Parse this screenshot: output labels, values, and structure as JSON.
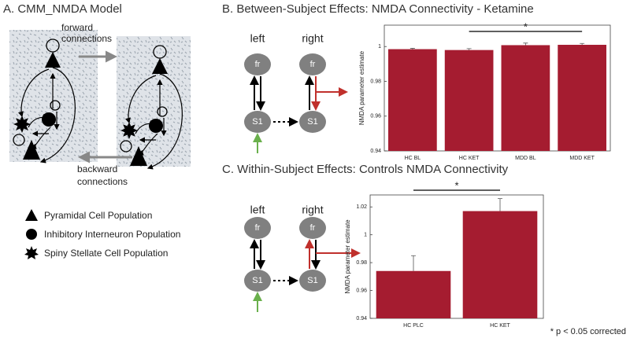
{
  "panel_a": {
    "title": "A. CMM_NMDA Model",
    "forward": [
      "forward",
      "connections"
    ],
    "backward": [
      "backward",
      "connections"
    ],
    "legend": [
      "Pyramidal Cell Population",
      "Inhibitory Interneuron Population",
      "Spiny Stellate Cell Population"
    ]
  },
  "panel_b": {
    "title": "B. Between-Subject Effects: NMDA Connectivity - Ketamine",
    "diagram": {
      "left": "left",
      "right": "right",
      "top": "fr",
      "bottom": "S1"
    }
  },
  "panel_c": {
    "title": "C. Within-Subject Effects: Controls NMDA Connectivity",
    "diagram": {
      "left": "left",
      "right": "right",
      "top": "fr",
      "bottom": "S1"
    }
  },
  "footnote": "* p < 0.05 corrected",
  "chart_data": [
    {
      "type": "bar",
      "ylabel": "NMDA parameter estimate",
      "categories": [
        "HC BL",
        "HC KET",
        "MDD BL",
        "MDD KET"
      ],
      "values": [
        0.9985,
        0.998,
        1.0008,
        1.001
      ],
      "errors": [
        0.0005,
        0.0008,
        0.0012,
        0.0008
      ],
      "color": "#a51c30",
      "ylim": [
        0.94,
        1.0123
      ],
      "yticks": [
        0.94,
        0.96,
        0.98,
        1
      ],
      "significance": {
        "label": "*",
        "between": [
          "HC KET",
          "MDD KET"
        ]
      }
    },
    {
      "type": "bar",
      "ylabel": "NMDA parameter estimate",
      "categories": [
        "HC PLC",
        "HC KET"
      ],
      "values": [
        0.974,
        1.017
      ],
      "errors": [
        0.011,
        0.009
      ],
      "color": "#a51c30",
      "ylim": [
        0.94,
        1.0286
      ],
      "yticks": [
        0.94,
        0.96,
        0.98,
        1,
        1.02
      ],
      "significance": {
        "label": "*",
        "between": [
          "HC PLC",
          "HC KET"
        ]
      }
    }
  ]
}
